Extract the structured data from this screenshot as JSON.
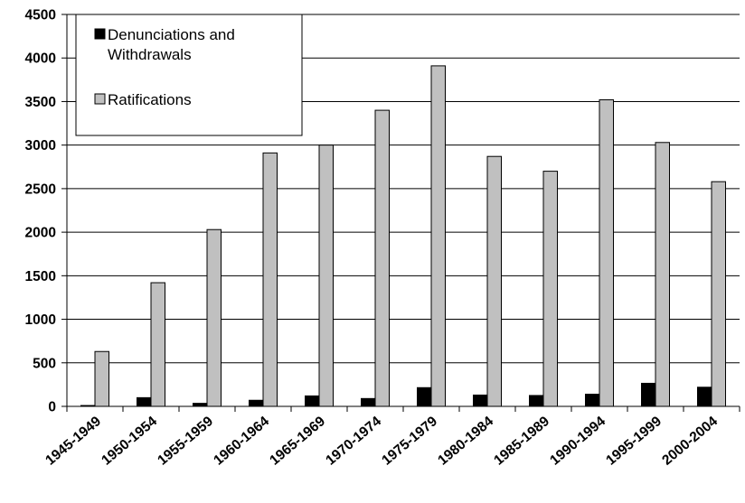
{
  "chart_data": {
    "type": "bar",
    "categories": [
      "1945-1949",
      "1950-1954",
      "1955-1959",
      "1960-1964",
      "1965-1969",
      "1970-1974",
      "1975-1979",
      "1980-1984",
      "1985-1989",
      "1990-1994",
      "1995-1999",
      "2000-2004"
    ],
    "series": [
      {
        "name": "Denunciations and Withdrawals",
        "legend_lines": [
          "Denunciations and",
          "Withdrawals"
        ],
        "color": "#000000",
        "values": [
          10,
          100,
          35,
          70,
          120,
          90,
          215,
          130,
          125,
          140,
          265,
          220
        ]
      },
      {
        "name": "Ratifications",
        "legend_lines": [
          "Ratifications"
        ],
        "color": "#c0c0c0",
        "values": [
          630,
          1420,
          2030,
          2910,
          3000,
          3400,
          3910,
          2870,
          2700,
          3520,
          3030,
          2580
        ]
      }
    ],
    "yticks": [
      "0",
      "500",
      "1000",
      "1500",
      "2000",
      "2500",
      "3000",
      "3500",
      "4000",
      "4500"
    ],
    "ylim": [
      0,
      4500
    ],
    "grid": true,
    "legend_position": "top-left",
    "title": "",
    "xlabel": "",
    "ylabel": ""
  }
}
